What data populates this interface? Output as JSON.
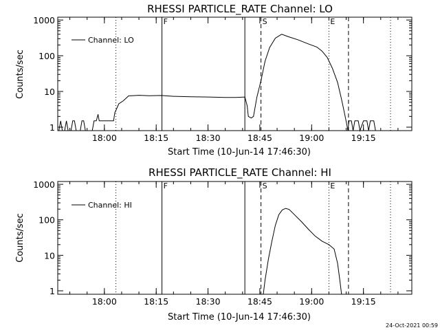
{
  "footer_timestamp": "24-Oct-2021 00:59",
  "chart_data": [
    {
      "type": "line",
      "title": "RHESSI PARTICLE_RATE Channel: LO",
      "xlabel": "Start Time (10-Jun-14 17:46:30)",
      "ylabel": "Counts/sec",
      "y_log_scale": true,
      "xlim": [
        "17:46:30",
        "19:29:00"
      ],
      "ylim": [
        0.8,
        1200
      ],
      "x_ticks": [
        "18:00",
        "18:15",
        "18:30",
        "18:45",
        "19:00",
        "19:15"
      ],
      "y_ticks": [
        {
          "value": 1,
          "label": "1"
        },
        {
          "value": 10,
          "label": "10"
        },
        {
          "value": 100,
          "label": "100"
        },
        {
          "value": 1000,
          "label": "1000"
        }
      ],
      "legend": {
        "position": "top-left",
        "entries": [
          "Channel: LO"
        ]
      },
      "markers": [
        {
          "time": "18:03:20",
          "style": "dotted",
          "label": ""
        },
        {
          "time": "18:16:40",
          "style": "solid",
          "label": "F"
        },
        {
          "time": "18:40:40",
          "style": "solid",
          "label": ""
        },
        {
          "time": "18:45:20",
          "style": "dashed",
          "label": "S"
        },
        {
          "time": "19:05:00",
          "style": "dotted",
          "label": "E"
        },
        {
          "time": "19:10:40",
          "style": "dashed",
          "label": ""
        },
        {
          "time": "19:22:50",
          "style": "dotted",
          "label": ""
        }
      ],
      "series": [
        {
          "name": "Channel: LO",
          "points": [
            [
              "17:46:50",
              0.8
            ],
            [
              "17:47:20",
              1.5
            ],
            [
              "17:47:50",
              0.8
            ],
            [
              "17:48:30",
              0.8
            ],
            [
              "17:49:00",
              1.5
            ],
            [
              "17:49:30",
              0.8
            ],
            [
              "17:50:20",
              0.8
            ],
            [
              "17:50:50",
              1.5
            ],
            [
              "17:51:20",
              1.5
            ],
            [
              "17:51:50",
              0.8
            ],
            [
              "17:53:00",
              0.8
            ],
            [
              "17:53:30",
              1.5
            ],
            [
              "17:54:00",
              1.5
            ],
            [
              "17:54:30",
              0.8
            ],
            [
              "17:56:30",
              0.8
            ],
            [
              "17:57:00",
              1.5
            ],
            [
              "17:57:40",
              1.5
            ],
            [
              "17:58:10",
              2.3
            ],
            [
              "17:58:30",
              1.5
            ],
            [
              "18:02:40",
              1.5
            ],
            [
              "18:03:00",
              2.5
            ],
            [
              "18:04:10",
              4.5
            ],
            [
              "18:05:30",
              5.5
            ],
            [
              "18:07:00",
              7.5
            ],
            [
              "18:10:00",
              7.8
            ],
            [
              "18:13:00",
              7.6
            ],
            [
              "18:16:30",
              7.7
            ],
            [
              "18:20:00",
              7.3
            ],
            [
              "18:25:00",
              7.1
            ],
            [
              "18:30:00",
              7
            ],
            [
              "18:35:00",
              6.8
            ],
            [
              "18:38:00",
              6.8
            ],
            [
              "18:40:40",
              7
            ],
            [
              "18:41:20",
              4
            ],
            [
              "18:41:40",
              2
            ],
            [
              "18:42:30",
              1.8
            ],
            [
              "18:43:10",
              2
            ],
            [
              "18:44:10",
              7
            ],
            [
              "18:45:20",
              20
            ],
            [
              "18:46:30",
              70
            ],
            [
              "18:47:50",
              170
            ],
            [
              "18:49:30",
              310
            ],
            [
              "18:51:20",
              400
            ],
            [
              "18:53:20",
              340
            ],
            [
              "18:56:00",
              280
            ],
            [
              "18:59:00",
              215
            ],
            [
              "19:01:30",
              175
            ],
            [
              "19:03:00",
              135
            ],
            [
              "19:04:30",
              90
            ],
            [
              "19:06:00",
              45
            ],
            [
              "19:07:30",
              18
            ],
            [
              "19:08:40",
              6
            ],
            [
              "19:09:30",
              2.5
            ],
            [
              "19:10:10",
              1.2
            ],
            [
              "19:10:30",
              0.8
            ],
            [
              "19:10:50",
              1.5
            ],
            [
              "19:11:30",
              1.5
            ],
            [
              "19:12:00",
              0.8
            ],
            [
              "19:12:30",
              1.5
            ],
            [
              "19:13:30",
              1.5
            ],
            [
              "19:14:00",
              0.8
            ],
            [
              "19:15:00",
              1.5
            ],
            [
              "19:16:00",
              1.5
            ],
            [
              "19:16:30",
              0.8
            ],
            [
              "19:17:00",
              1.5
            ],
            [
              "19:18:00",
              1.5
            ],
            [
              "19:18:30",
              0.8
            ]
          ]
        }
      ]
    },
    {
      "type": "line",
      "title": "RHESSI PARTICLE_RATE Channel: HI",
      "xlabel": "Start Time (10-Jun-14 17:46:30)",
      "ylabel": "Counts/sec",
      "y_log_scale": true,
      "xlim": [
        "17:46:30",
        "19:29:00"
      ],
      "ylim": [
        0.8,
        1200
      ],
      "x_ticks": [
        "18:00",
        "18:15",
        "18:30",
        "18:45",
        "19:00",
        "19:15"
      ],
      "y_ticks": [
        {
          "value": 1,
          "label": "1"
        },
        {
          "value": 10,
          "label": "10"
        },
        {
          "value": 100,
          "label": "100"
        },
        {
          "value": 1000,
          "label": "1000"
        }
      ],
      "legend": {
        "position": "top-left",
        "entries": [
          "Channel: HI"
        ]
      },
      "markers": [
        {
          "time": "18:03:20",
          "style": "dotted",
          "label": ""
        },
        {
          "time": "18:16:40",
          "style": "solid",
          "label": "F"
        },
        {
          "time": "18:40:40",
          "style": "solid",
          "label": ""
        },
        {
          "time": "18:45:20",
          "style": "dashed",
          "label": "S"
        },
        {
          "time": "19:05:00",
          "style": "dotted",
          "label": "E"
        },
        {
          "time": "19:10:40",
          "style": "dashed",
          "label": ""
        },
        {
          "time": "19:22:50",
          "style": "dotted",
          "label": ""
        }
      ],
      "series": [
        {
          "name": "Channel: HI",
          "points": [
            [
              "18:46:00",
              0.8
            ],
            [
              "18:46:30",
              2
            ],
            [
              "18:47:30",
              8
            ],
            [
              "18:48:30",
              25
            ],
            [
              "18:49:30",
              70
            ],
            [
              "18:50:30",
              140
            ],
            [
              "18:51:30",
              190
            ],
            [
              "18:52:30",
              210
            ],
            [
              "18:53:30",
              195
            ],
            [
              "18:55:00",
              140
            ],
            [
              "18:57:00",
              90
            ],
            [
              "18:59:00",
              55
            ],
            [
              "19:01:00",
              35
            ],
            [
              "19:03:00",
              25
            ],
            [
              "19:05:00",
              20
            ],
            [
              "19:06:30",
              15
            ],
            [
              "19:07:30",
              6
            ],
            [
              "19:08:10",
              2
            ],
            [
              "19:08:40",
              0.8
            ]
          ]
        }
      ]
    }
  ]
}
